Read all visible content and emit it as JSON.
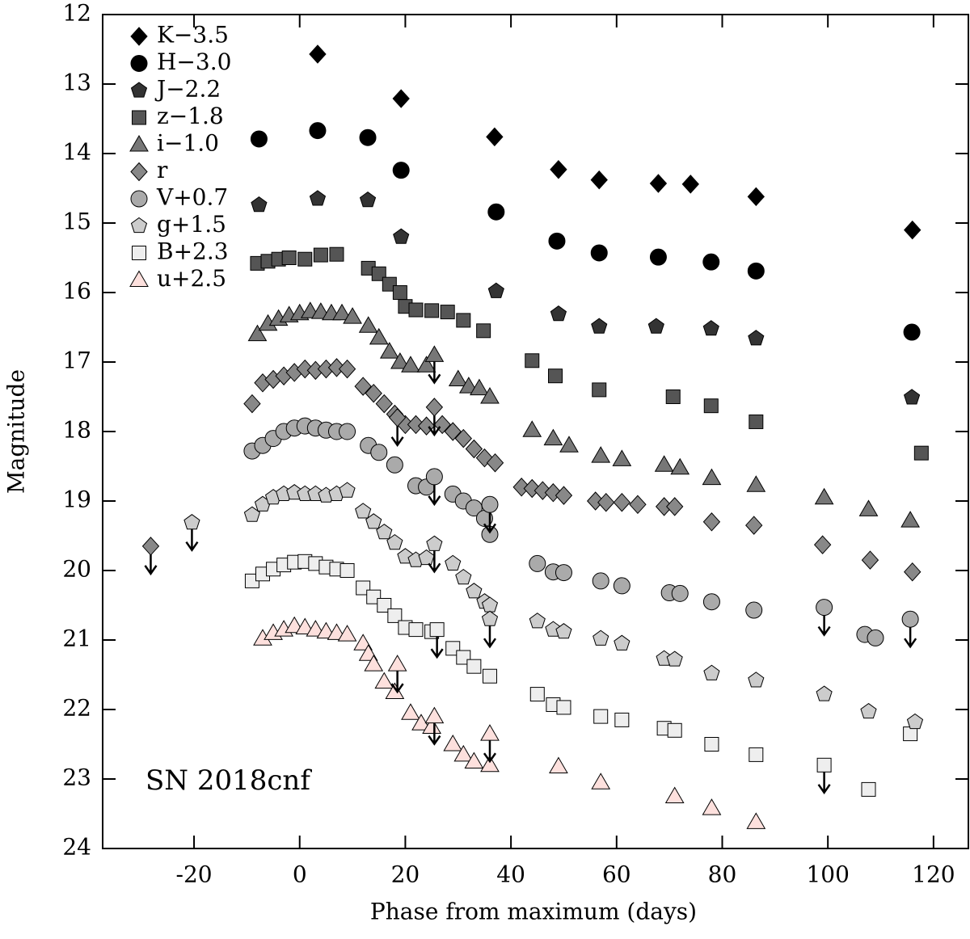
{
  "chart_data": {
    "type": "scatter",
    "annotation": "SN 2018cnf",
    "xlabel": "Phase from maximum (days)",
    "ylabel": "Magnitude",
    "xlim": [
      -37.3,
      126.6
    ],
    "ylim": [
      24,
      12
    ],
    "xticks": [
      -20,
      0,
      20,
      40,
      60,
      80,
      100,
      120
    ],
    "yticks": [
      12,
      13,
      14,
      15,
      16,
      17,
      18,
      19,
      20,
      21,
      22,
      23,
      24
    ],
    "legend": "upper left",
    "series": [
      {
        "name": "K−3.5",
        "marker": "diamond",
        "color": "#000000",
        "x": [
          3.4,
          19.2,
          36.9,
          49,
          56.7,
          67.9,
          74,
          86.4,
          116
        ],
        "values": [
          12.57,
          13.21,
          13.76,
          14.23,
          14.38,
          14.43,
          14.44,
          14.62,
          15.1
        ],
        "upper_limits": {
          "x": [],
          "values": []
        }
      },
      {
        "name": "H−3.0",
        "marker": "circle",
        "color": "#000000",
        "x": [
          -7.7,
          3.4,
          12.9,
          19.2,
          37.2,
          48.7,
          56.7,
          67.9,
          77.9,
          86.4,
          115.9
        ],
        "values": [
          13.79,
          13.67,
          13.77,
          14.24,
          14.84,
          15.26,
          15.43,
          15.49,
          15.56,
          15.69,
          16.57
        ],
        "upper_limits": {
          "x": [],
          "values": []
        }
      },
      {
        "name": "J−2.2",
        "marker": "pentagon",
        "color": "#333333",
        "x": [
          -7.7,
          3.4,
          12.9,
          19.2,
          37.2,
          49,
          56.7,
          67.5,
          77.9,
          86.4,
          115.9
        ],
        "values": [
          14.74,
          14.65,
          14.67,
          15.2,
          15.98,
          16.31,
          16.49,
          16.49,
          16.52,
          16.66,
          17.51
        ],
        "upper_limits": {
          "x": [],
          "values": []
        }
      },
      {
        "name": "z−1.8",
        "marker": "square",
        "color": "#555555",
        "x": [
          -8,
          -6,
          -4,
          -2,
          1,
          4,
          7,
          13,
          15,
          17,
          19,
          20,
          22,
          25,
          28,
          31,
          34.8,
          44,
          48.4,
          56.7,
          70.7,
          77.9,
          86.4,
          117.7
        ],
        "values": [
          15.58,
          15.55,
          15.52,
          15.5,
          15.52,
          15.46,
          15.45,
          15.65,
          15.73,
          15.88,
          16.0,
          16.2,
          16.25,
          16.26,
          16.28,
          16.4,
          16.55,
          16.98,
          17.2,
          17.4,
          17.5,
          17.63,
          17.86,
          18.31
        ],
        "upper_limits": {
          "x": [],
          "values": []
        }
      },
      {
        "name": "i−1.0",
        "marker": "triangle",
        "color": "#777777",
        "x": [
          -8,
          -6,
          -4,
          -2,
          0,
          2,
          4,
          6,
          8,
          10,
          13,
          15,
          17,
          19,
          21,
          24,
          30,
          32,
          34,
          36,
          44,
          48,
          51,
          57,
          61,
          69,
          72,
          78,
          86.4,
          99.3,
          107.7,
          115.6
        ],
        "values": [
          16.6,
          16.45,
          16.38,
          16.33,
          16.3,
          16.27,
          16.28,
          16.3,
          16.3,
          16.35,
          16.48,
          16.65,
          16.85,
          17.0,
          17.05,
          17.05,
          17.25,
          17.35,
          17.38,
          17.5,
          17.98,
          18.1,
          18.2,
          18.35,
          18.4,
          18.48,
          18.52,
          18.67,
          18.77,
          18.95,
          19.12,
          19.28
        ],
        "upper_limits": {
          "x": [
            25.5
          ],
          "values": [
            16.9
          ]
        }
      },
      {
        "name": "r",
        "marker": "diamond",
        "color": "#888888",
        "x": [
          -9,
          -7,
          -5,
          -3,
          -1,
          1,
          3,
          5,
          7,
          9,
          12,
          14,
          16,
          18,
          20,
          22,
          24,
          27,
          29,
          31,
          33,
          35,
          37,
          42,
          44,
          46,
          48,
          50,
          56,
          58,
          61,
          64,
          69,
          71,
          78,
          86,
          99,
          108,
          116
        ],
        "values": [
          17.6,
          17.3,
          17.25,
          17.2,
          17.15,
          17.1,
          17.12,
          17.1,
          17.08,
          17.1,
          17.35,
          17.45,
          17.6,
          17.75,
          17.9,
          17.9,
          17.92,
          17.9,
          18.0,
          18.1,
          18.25,
          18.38,
          18.45,
          18.8,
          18.82,
          18.85,
          18.88,
          18.92,
          19.0,
          19.02,
          19.02,
          19.05,
          19.08,
          19.08,
          19.3,
          19.35,
          19.63,
          19.85,
          20.02
        ],
        "upper_limits": {
          "x": [
            -28.2,
            25.5,
            18.5
          ],
          "values": [
            19.65,
            17.65,
            17.8
          ]
        }
      },
      {
        "name": "V+0.7",
        "marker": "circle",
        "color": "#aaaaaa",
        "x": [
          -9,
          -7,
          -5,
          -3,
          -1,
          1,
          3,
          5,
          7,
          9,
          13,
          15,
          18,
          22,
          24,
          29,
          31,
          33,
          35,
          36,
          45,
          48,
          50,
          57,
          61,
          70,
          72,
          78,
          86,
          107,
          109
        ],
        "values": [
          18.28,
          18.2,
          18.1,
          18.0,
          17.95,
          17.92,
          17.95,
          17.98,
          18.0,
          18.0,
          18.2,
          18.3,
          18.48,
          18.78,
          18.8,
          18.9,
          19.0,
          19.1,
          19.25,
          19.48,
          19.9,
          20.02,
          20.03,
          20.15,
          20.22,
          20.32,
          20.33,
          20.45,
          20.57,
          20.92,
          20.97
        ],
        "upper_limits": {
          "x": [
            25.5,
            36,
            99.3,
            115.6
          ],
          "values": [
            18.65,
            19.05,
            20.53,
            20.7
          ]
        }
      },
      {
        "name": "g+1.5",
        "marker": "pentagon",
        "color": "#cccccc",
        "x": [
          -9,
          -7,
          -5,
          -3,
          -1,
          1,
          3,
          5,
          7,
          9,
          12,
          14,
          16,
          18,
          20,
          22,
          24,
          29,
          31,
          33,
          35,
          36,
          45,
          48,
          50,
          57,
          61,
          69,
          71,
          78,
          86.4,
          99.3,
          107.7,
          116.5
        ],
        "values": [
          19.2,
          19.05,
          18.95,
          18.9,
          18.88,
          18.9,
          18.9,
          18.92,
          18.9,
          18.85,
          19.15,
          19.3,
          19.45,
          19.6,
          19.8,
          19.85,
          19.82,
          19.9,
          20.1,
          20.3,
          20.45,
          20.5,
          20.73,
          20.85,
          20.88,
          20.98,
          21.05,
          21.27,
          21.28,
          21.48,
          21.58,
          21.78,
          22.03,
          22.18
        ],
        "upper_limits": {
          "x": [
            -20.4,
            25.5,
            36
          ],
          "values": [
            19.31,
            19.62,
            20.7
          ]
        }
      },
      {
        "name": "B+2.3",
        "marker": "square",
        "color": "#eeeeee",
        "x": [
          -9,
          -7,
          -5,
          -3,
          -1,
          1,
          3,
          5,
          7,
          9,
          12,
          14,
          16,
          18,
          20,
          22,
          25,
          29,
          31,
          33,
          36,
          45,
          48,
          50,
          57,
          61,
          69,
          71,
          78,
          86.4,
          107.7,
          115.6
        ],
        "values": [
          20.15,
          20.05,
          19.98,
          19.92,
          19.88,
          19.87,
          19.9,
          19.95,
          19.98,
          20.0,
          20.25,
          20.38,
          20.5,
          20.65,
          20.82,
          20.85,
          20.88,
          21.12,
          21.25,
          21.38,
          21.52,
          21.78,
          21.93,
          21.97,
          22.1,
          22.15,
          22.27,
          22.3,
          22.5,
          22.65,
          23.15,
          22.35
        ],
        "upper_limits": {
          "x": [
            26,
            99.3
          ],
          "values": [
            20.85,
            22.8
          ]
        }
      },
      {
        "name": "u+2.5",
        "marker": "triangle",
        "color": "#fde0dd",
        "x": [
          -7,
          -5,
          -3,
          -1,
          1,
          3,
          5,
          7,
          9,
          12,
          13,
          14,
          16,
          18,
          21,
          23,
          25,
          29,
          31,
          33,
          36,
          49,
          57,
          71,
          78,
          86.4
        ],
        "values": [
          20.98,
          20.9,
          20.85,
          20.8,
          20.82,
          20.85,
          20.88,
          20.9,
          20.92,
          21.05,
          21.2,
          21.35,
          21.6,
          21.75,
          22.05,
          22.2,
          22.25,
          22.5,
          22.65,
          22.75,
          22.8,
          22.82,
          23.05,
          23.25,
          23.42,
          23.62
        ],
        "upper_limits": {
          "x": [
            18.5,
            25.5,
            36
          ],
          "values": [
            21.35,
            22.1,
            22.35
          ]
        }
      }
    ]
  }
}
